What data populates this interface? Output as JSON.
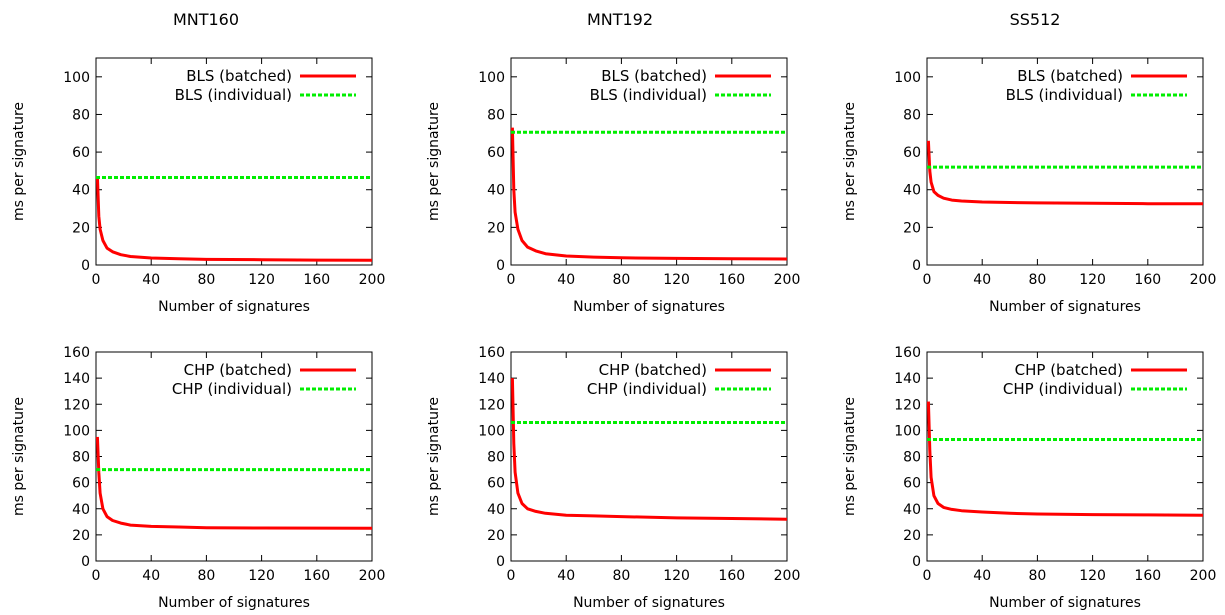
{
  "columns": [
    "MNT160",
    "MNT192",
    "SS512"
  ],
  "colors": {
    "batched": "#ff0000",
    "individual": "#00ee00"
  },
  "chart_data": [
    {
      "type": "line",
      "panel": "MNT160-BLS",
      "xlabel": "Number of signatures",
      "ylabel": "ms per signature",
      "xlim": [
        0,
        200
      ],
      "ylim": [
        0,
        110
      ],
      "xticks": [
        0,
        40,
        80,
        120,
        160,
        200
      ],
      "yticks": [
        0,
        20,
        40,
        60,
        80,
        100
      ],
      "legend": "top-right",
      "series": [
        {
          "name": "BLS (batched)",
          "style": "solid",
          "color": "#ff0000",
          "x": [
            1,
            2,
            3,
            5,
            8,
            12,
            18,
            25,
            40,
            60,
            80,
            120,
            160,
            200
          ],
          "y": [
            47,
            26,
            19,
            13,
            9,
            7,
            5.5,
            4.5,
            3.7,
            3.3,
            3.0,
            2.8,
            2.6,
            2.5
          ]
        },
        {
          "name": "BLS (individual)",
          "style": "dashed",
          "color": "#00ee00",
          "x": [
            0,
            200
          ],
          "y": [
            46.5,
            46.5
          ]
        }
      ]
    },
    {
      "type": "line",
      "panel": "MNT192-BLS",
      "xlabel": "Number of signatures",
      "ylabel": "ms per signature",
      "xlim": [
        0,
        200
      ],
      "ylim": [
        0,
        110
      ],
      "xticks": [
        0,
        40,
        80,
        120,
        160,
        200
      ],
      "yticks": [
        0,
        20,
        40,
        60,
        80,
        100
      ],
      "legend": "top-right",
      "series": [
        {
          "name": "BLS (batched)",
          "style": "solid",
          "color": "#ff0000",
          "x": [
            1,
            2,
            3,
            5,
            8,
            12,
            18,
            25,
            40,
            60,
            80,
            120,
            160,
            200
          ],
          "y": [
            73,
            40,
            28,
            19,
            13,
            9.5,
            7.5,
            6,
            4.8,
            4.2,
            3.8,
            3.5,
            3.3,
            3.2
          ]
        },
        {
          "name": "BLS (individual)",
          "style": "dashed",
          "color": "#00ee00",
          "x": [
            0,
            200
          ],
          "y": [
            70.5,
            70.5
          ]
        }
      ]
    },
    {
      "type": "line",
      "panel": "SS512-BLS",
      "xlabel": "Number of signatures",
      "ylabel": "ms per signature",
      "xlim": [
        0,
        200
      ],
      "ylim": [
        0,
        110
      ],
      "xticks": [
        0,
        40,
        80,
        120,
        160,
        200
      ],
      "yticks": [
        0,
        20,
        40,
        60,
        80,
        100
      ],
      "legend": "top-right",
      "series": [
        {
          "name": "BLS (batched)",
          "style": "solid",
          "color": "#ff0000",
          "x": [
            1,
            2,
            3,
            5,
            8,
            12,
            18,
            25,
            40,
            60,
            80,
            120,
            160,
            200
          ],
          "y": [
            66,
            50,
            44,
            39,
            37,
            35.5,
            34.5,
            34,
            33.5,
            33.2,
            33,
            32.8,
            32.6,
            32.5
          ]
        },
        {
          "name": "BLS (individual)",
          "style": "dashed",
          "color": "#00ee00",
          "x": [
            0,
            200
          ],
          "y": [
            52,
            52
          ]
        }
      ]
    },
    {
      "type": "line",
      "panel": "MNT160-CHP",
      "xlabel": "Number of signatures",
      "ylabel": "ms per signature",
      "xlim": [
        0,
        200
      ],
      "ylim": [
        0,
        160
      ],
      "xticks": [
        0,
        40,
        80,
        120,
        160,
        200
      ],
      "yticks": [
        0,
        20,
        40,
        60,
        80,
        100,
        120,
        140,
        160
      ],
      "legend": "top-right",
      "series": [
        {
          "name": "CHP (batched)",
          "style": "solid",
          "color": "#ff0000",
          "x": [
            1,
            2,
            3,
            5,
            8,
            12,
            18,
            25,
            40,
            60,
            80,
            120,
            160,
            200
          ],
          "y": [
            95,
            68,
            52,
            40,
            34,
            31,
            29,
            27.5,
            26.5,
            26,
            25.5,
            25.3,
            25.2,
            25
          ]
        },
        {
          "name": "CHP (individual)",
          "style": "dashed",
          "color": "#00ee00",
          "x": [
            0,
            200
          ],
          "y": [
            70,
            70
          ]
        }
      ]
    },
    {
      "type": "line",
      "panel": "MNT192-CHP",
      "xlabel": "Number of signatures",
      "ylabel": "ms per signature",
      "xlim": [
        0,
        200
      ],
      "ylim": [
        0,
        160
      ],
      "xticks": [
        0,
        40,
        80,
        120,
        160,
        200
      ],
      "yticks": [
        0,
        20,
        40,
        60,
        80,
        100,
        120,
        140,
        160
      ],
      "legend": "top-right",
      "series": [
        {
          "name": "CHP (batched)",
          "style": "solid",
          "color": "#ff0000",
          "x": [
            1,
            2,
            3,
            5,
            8,
            12,
            18,
            25,
            40,
            60,
            80,
            120,
            160,
            200
          ],
          "y": [
            140,
            90,
            68,
            52,
            44,
            40,
            38,
            36.5,
            35,
            34.5,
            34,
            33,
            32.5,
            32
          ]
        },
        {
          "name": "CHP (individual)",
          "style": "dashed",
          "color": "#00ee00",
          "x": [
            0,
            200
          ],
          "y": [
            106,
            106
          ]
        }
      ]
    },
    {
      "type": "line",
      "panel": "SS512-CHP",
      "xlabel": "Number of signatures",
      "ylabel": "ms per signature",
      "xlim": [
        0,
        200
      ],
      "ylim": [
        0,
        160
      ],
      "xticks": [
        0,
        40,
        80,
        120,
        160,
        200
      ],
      "yticks": [
        0,
        20,
        40,
        60,
        80,
        100,
        120,
        140,
        160
      ],
      "legend": "top-right",
      "series": [
        {
          "name": "CHP (batched)",
          "style": "solid",
          "color": "#ff0000",
          "x": [
            1,
            2,
            3,
            5,
            8,
            12,
            18,
            25,
            40,
            60,
            80,
            120,
            160,
            200
          ],
          "y": [
            122,
            85,
            64,
            50,
            44,
            41,
            39.5,
            38.5,
            37.5,
            36.5,
            36,
            35.5,
            35.3,
            35
          ]
        },
        {
          "name": "CHP (individual)",
          "style": "dashed",
          "color": "#00ee00",
          "x": [
            0,
            200
          ],
          "y": [
            93,
            93
          ]
        }
      ]
    }
  ]
}
